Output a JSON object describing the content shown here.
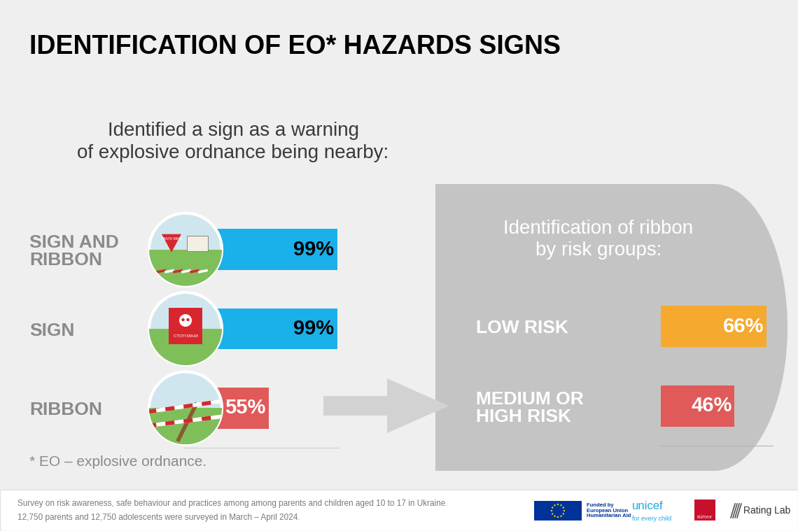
{
  "title": "IDENTIFICATION OF EO* HAZARDS SIGNS",
  "footnote": "* EO – explosive ordnance.",
  "source": [
    "Survey on risk awareness, safe behaviour and practices among among parents and children aged 10 to 17 in Ukraine.",
    "12,750 parents and 12,750 adolescents were surveyed in March – April 2024."
  ],
  "icons": [
    "УВАГА! МІНИ",
    "СТОП МІНИ"
  ],
  "logos": {
    "eu": "Funded by\nEuropean Union\nHumanitarian Aid",
    "unicef": "unicef",
    "unicef_tagline": "for every child",
    "rating": "РЕЙТИНГ",
    "rating_lab": "Rating Lab"
  },
  "chart_data": [
    {
      "type": "bar",
      "orientation": "horizontal",
      "title": "Identified a sign as a warning\nof explosive ordnance being nearby:",
      "categories": [
        "SIGN AND\nRIBBON",
        "SIGN",
        "RIBBON"
      ],
      "values": [
        99,
        99,
        55
      ],
      "value_labels": [
        "99%",
        "99%",
        "55%"
      ],
      "colors": [
        "#1ab0ea",
        "#1ab0ea",
        "#e05a5a"
      ],
      "xlim": [
        0,
        100
      ],
      "data_labels": true,
      "tick_labels": "y"
    },
    {
      "type": "bar",
      "orientation": "horizontal",
      "title": "Identification of ribbon\nby risk groups:",
      "categories": [
        "LOW RISK",
        "MEDIUM OR\nHIGH RISK"
      ],
      "values": [
        66,
        46
      ],
      "value_labels": [
        "66%",
        "46%"
      ],
      "colors": [
        "#f5a92e",
        "#e05a5a"
      ],
      "xlim": [
        0,
        70
      ],
      "data_labels": true,
      "tick_labels": "y"
    }
  ]
}
